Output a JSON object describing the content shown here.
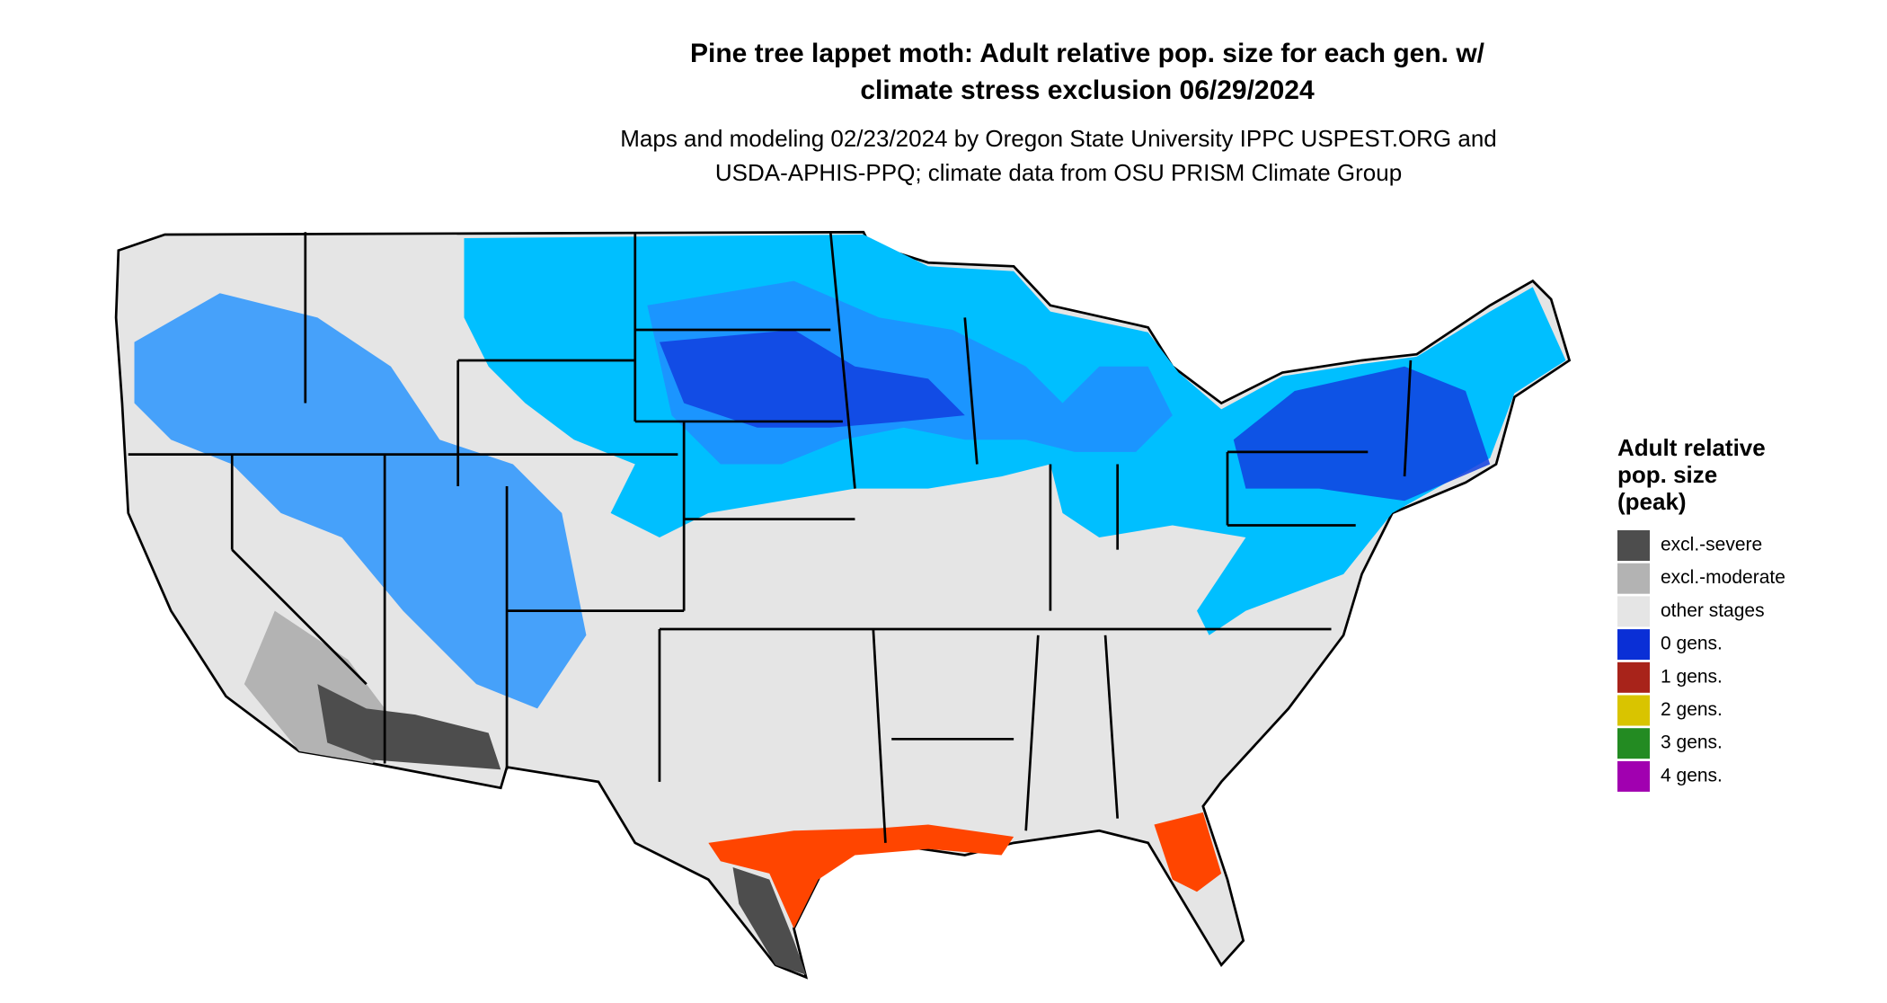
{
  "title": [
    "Pine tree lappet moth: Adult relative pop. size for each gen. w/",
    "climate stress exclusion 06/29/2024"
  ],
  "subtitle": [
    "Maps and modeling 02/23/2024 by Oregon State University IPPC USPEST.ORG and",
    "USDA-APHIS-PPQ; climate data from OSU PRISM Climate Group"
  ],
  "legend": {
    "title": [
      "Adult relative",
      "pop. size",
      "(peak)"
    ],
    "items": [
      {
        "label": "excl.-severe",
        "color": "#4d4d4d"
      },
      {
        "label": "excl.-moderate",
        "color": "#b3b3b3"
      },
      {
        "label": "other stages",
        "color": "#e5e5e5"
      },
      {
        "label": "0 gens.",
        "color": "#0a2fd6"
      },
      {
        "label": "1 gens.",
        "color": "#a8231a"
      },
      {
        "label": "2 gens.",
        "color": "#d9c400"
      },
      {
        "label": "3 gens.",
        "color": "#238b22"
      },
      {
        "label": "4 gens.",
        "color": "#a100b0"
      }
    ]
  }
}
